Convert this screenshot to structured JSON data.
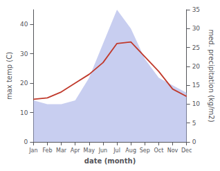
{
  "chart_data": {
    "type": "line",
    "xlabel": "date (month)",
    "ylabel": "max temp (C)",
    "y2label": "med. precipitation (kg/m2)",
    "categories": [
      "Jan",
      "Feb",
      "Mar",
      "Apr",
      "May",
      "Jun",
      "Jul",
      "Aug",
      "Sep",
      "Oct",
      "Nov",
      "Dec"
    ],
    "series": [
      {
        "type": "area",
        "axis": "y2",
        "color": "#aab4e8",
        "values": [
          11,
          10,
          10,
          11,
          17,
          26,
          35,
          30,
          22,
          17,
          15,
          13
        ]
      },
      {
        "type": "line",
        "color": "#c0392b",
        "values": [
          14.5,
          15.0,
          17.0,
          20.0,
          23.0,
          27.0,
          33.5,
          34.0,
          29.0,
          24.0,
          18.0,
          15.5
        ]
      }
    ],
    "ylim": [
      0,
      45
    ],
    "yticks": [
      0,
      10,
      20,
      30,
      40
    ],
    "y2lim": [
      0,
      35
    ],
    "y2ticks": [
      0,
      5,
      10,
      15,
      20,
      25,
      30,
      35
    ],
    "grid": false
  }
}
